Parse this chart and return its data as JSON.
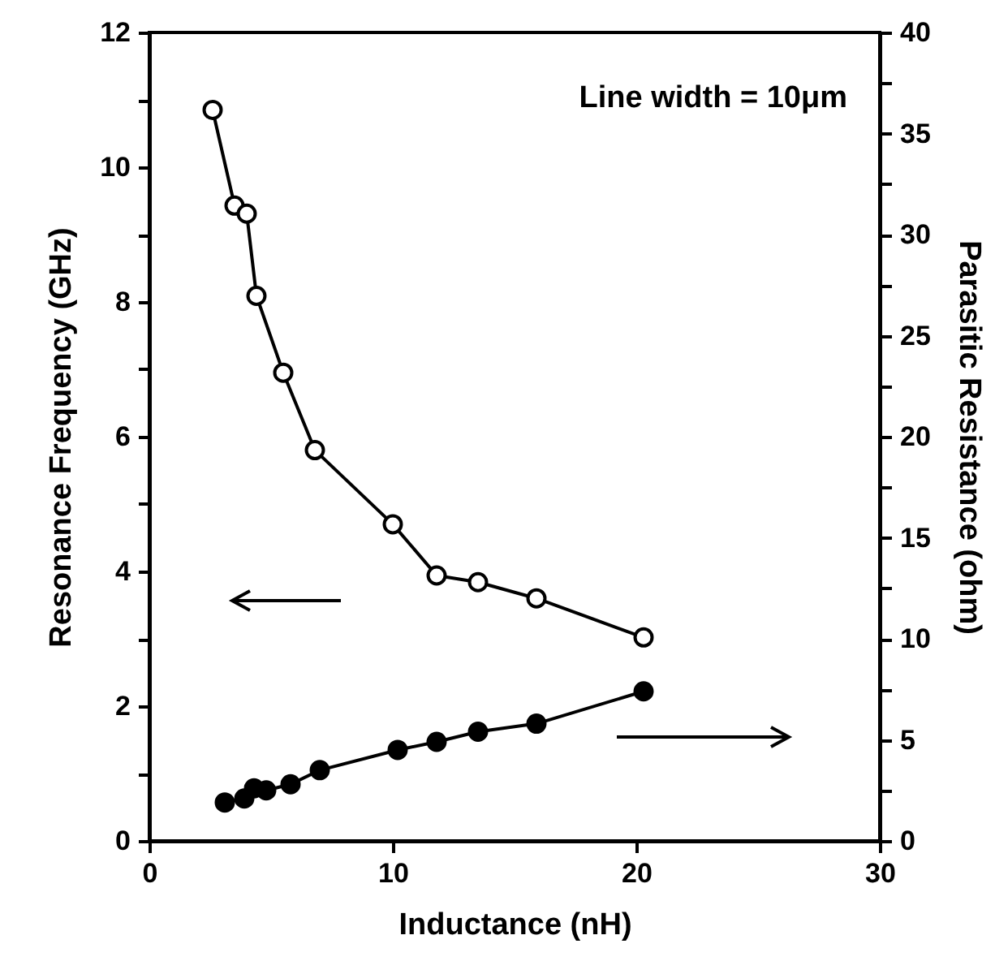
{
  "chart_data": {
    "type": "line",
    "xlabel": "Inductance (nH)",
    "ylabel": "Resonance Frequency (GHz)",
    "y2label": "Parasitic Resistance (ohm)",
    "annotations": [
      "Line width = 10μm"
    ],
    "xlim": [
      0,
      30
    ],
    "xticks": [
      0,
      10,
      20,
      30
    ],
    "ylim": [
      0,
      12
    ],
    "yticks": [
      0,
      {
        "value": 1,
        "label": null
      },
      2,
      {
        "value": 3,
        "label": null
      },
      4,
      {
        "value": 5,
        "label": null
      },
      6,
      {
        "value": 7,
        "label": null
      },
      8,
      {
        "value": 9,
        "label": null
      },
      10,
      {
        "value": 11,
        "label": null
      },
      12
    ],
    "y2lim": [
      0,
      40
    ],
    "y2ticks": [
      0,
      {
        "value": 2.5,
        "label": null
      },
      5,
      {
        "value": 7.5,
        "label": null
      },
      10,
      {
        "value": 12.5,
        "label": null
      },
      15,
      {
        "value": 17.5,
        "label": null
      },
      20,
      {
        "value": 22.5,
        "label": null
      },
      25,
      {
        "value": 27.5,
        "label": null
      },
      30,
      {
        "value": 32.5,
        "label": null
      },
      35,
      {
        "value": 37.5,
        "label": null
      },
      40
    ],
    "marker": "circle",
    "line_style": "solid",
    "series": [
      {
        "color": "#000000",
        "x": [
          2.6,
          3.5,
          4.0,
          4.4,
          5.5,
          6.8,
          10.0,
          11.8,
          13.5,
          15.9,
          20.3
        ],
        "values": [
          10.85,
          9.43,
          9.31,
          8.09,
          6.95,
          5.8,
          4.7,
          3.94,
          3.84,
          3.6,
          3.02
        ]
      },
      {
        "color": "#000000",
        "axis": "y2",
        "x": [
          3.1,
          3.9,
          4.3,
          4.8,
          5.8,
          7.0,
          10.2,
          11.8,
          13.5,
          15.9,
          20.3
        ],
        "values": [
          1.9,
          2.1,
          2.6,
          2.5,
          2.8,
          3.5,
          4.5,
          4.9,
          5.4,
          5.8,
          7.4
        ]
      }
    ]
  }
}
